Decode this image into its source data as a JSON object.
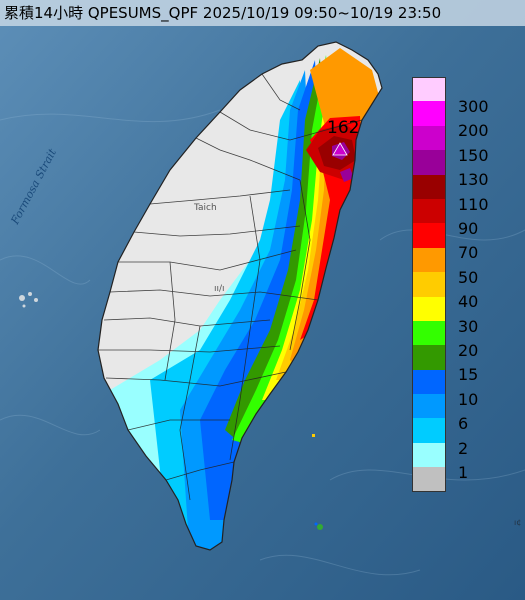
{
  "title": "累積14小時 QPESUMS_QPF 2025/10/19 09:50~10/19 23:50",
  "peak_value": "162",
  "sea_label": "Formosa Strait",
  "places": {
    "taichung": "Taich",
    "chiayi": "ıı/ı"
  },
  "edge_label": "ı¢",
  "legend": [
    {
      "label": "300",
      "color": "#ffccff"
    },
    {
      "label": "200",
      "color": "#ff00ff"
    },
    {
      "label": "150",
      "color": "#cc00cc"
    },
    {
      "label": "130",
      "color": "#990099"
    },
    {
      "label": "110",
      "color": "#990000"
    },
    {
      "label": "90",
      "color": "#cc0000"
    },
    {
      "label": "70",
      "color": "#ff0000"
    },
    {
      "label": "50",
      "color": "#ff9900"
    },
    {
      "label": "40",
      "color": "#ffcc00"
    },
    {
      "label": "30",
      "color": "#ffff00"
    },
    {
      "label": "20",
      "color": "#33ff00"
    },
    {
      "label": "15",
      "color": "#339900"
    },
    {
      "label": "10",
      "color": "#0066ff"
    },
    {
      "label": "6",
      "color": "#0099ff"
    },
    {
      "label": "2",
      "color": "#00ccff"
    },
    {
      "label": "1",
      "color": "#99ffff"
    },
    {
      "label": "",
      "color": "#c0c0c0"
    }
  ],
  "colors": {
    "sea": "#2f5f86",
    "land_dry": "#e6e6e6",
    "county_line": "#222222"
  }
}
